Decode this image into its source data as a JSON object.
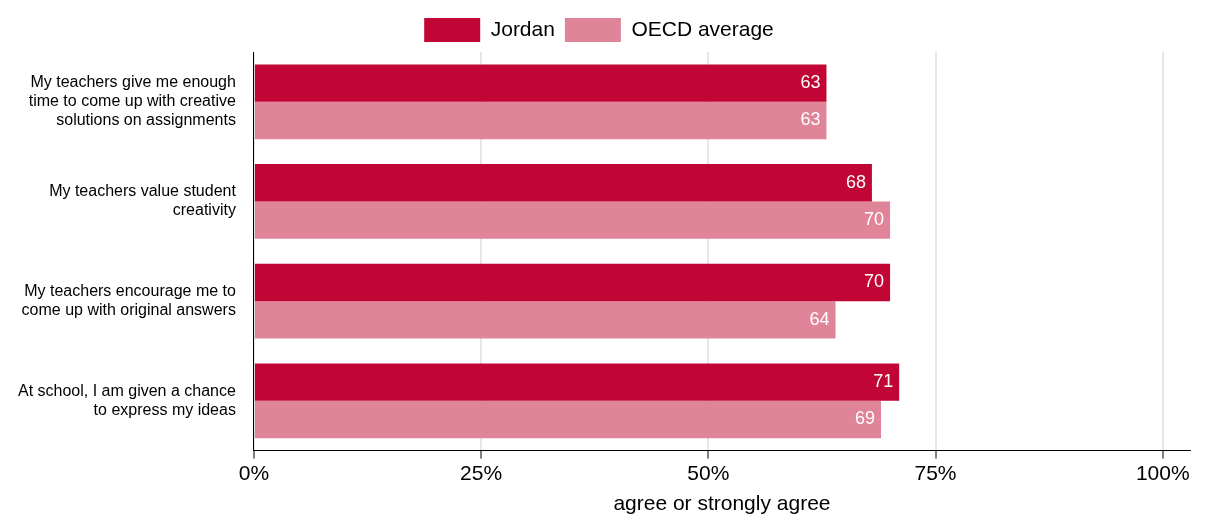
{
  "chart_data": {
    "type": "bar",
    "orientation": "horizontal",
    "xlabel": "agree or strongly agree",
    "categories": [
      "My teachers give me enough time to come up with creative solutions on assignments",
      "My teachers value student creativity",
      "My teachers encourage me to come up with original answers",
      "At school, I am given a chance to express my ideas"
    ],
    "series": [
      {
        "name": "Jordan",
        "color": "#c10534",
        "values": [
          63,
          68,
          70,
          71
        ]
      },
      {
        "name": "OECD average",
        "color": "#e0849a",
        "values": [
          63,
          70,
          64,
          69
        ]
      }
    ],
    "xlim": [
      0,
      103
    ],
    "xticks": [
      {
        "value": 0,
        "label": "0%"
      },
      {
        "value": 25,
        "label": "25%"
      },
      {
        "value": 50,
        "label": "50%"
      },
      {
        "value": 75,
        "label": "75%"
      },
      {
        "value": 100,
        "label": "100%"
      }
    ],
    "grid": "x",
    "legend": "top",
    "data_labels": true
  }
}
